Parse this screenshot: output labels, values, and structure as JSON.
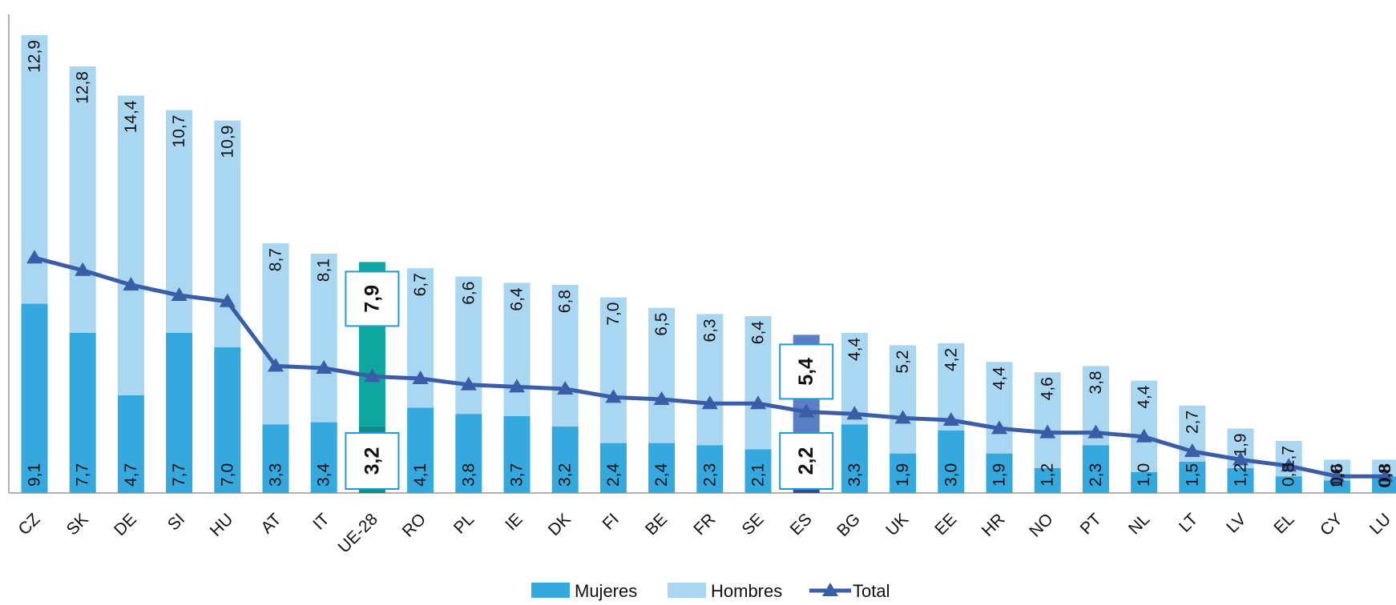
{
  "chart_data": {
    "type": "bar",
    "stacked": true,
    "categories": [
      "CZ",
      "SK",
      "DE",
      "SI",
      "HU",
      "AT",
      "IT",
      "UE-28",
      "RO",
      "PL",
      "IE",
      "DK",
      "FI",
      "BE",
      "FR",
      "SE",
      "ES",
      "BG",
      "UK",
      "EE",
      "HR",
      "NO",
      "PT",
      "NL",
      "LT",
      "LV",
      "EL",
      "CY",
      "LU"
    ],
    "series": [
      {
        "name": "Mujeres",
        "color": "#35A8DE",
        "values": [
          9.1,
          7.7,
          4.7,
          7.7,
          7.0,
          3.3,
          3.4,
          3.2,
          4.1,
          3.8,
          3.7,
          3.2,
          2.4,
          2.4,
          2.3,
          2.1,
          2.2,
          3.3,
          1.9,
          3.0,
          1.9,
          1.2,
          2.3,
          1.0,
          1.5,
          1.2,
          0.8,
          0.6,
          0.8
        ],
        "labels": [
          "9,1",
          "7,7",
          "4,7",
          "7,7",
          "7,0",
          "3,3",
          "3,4",
          "3,2",
          "4,1",
          "3,8",
          "3,7",
          "3,2",
          "2,4",
          "2,4",
          "2,3",
          "2,1",
          "2,2",
          "3,3",
          "1,9",
          "3,0",
          "1,9",
          "1,2",
          "2,3",
          "1,0",
          "1,5",
          "1,2",
          "0,8",
          "0,6",
          "0,8"
        ]
      },
      {
        "name": "Hombres",
        "color": "#A9D6F1",
        "values": [
          12.9,
          12.8,
          14.4,
          10.7,
          10.9,
          8.7,
          8.1,
          7.9,
          6.7,
          6.6,
          6.4,
          6.8,
          7.0,
          6.5,
          6.3,
          6.4,
          5.4,
          4.4,
          5.2,
          4.2,
          4.4,
          4.6,
          3.8,
          4.4,
          2.7,
          1.9,
          1.7,
          1.0,
          0.8
        ],
        "labels": [
          "12,9",
          "12,8",
          "14,4",
          "10,7",
          "10,9",
          "8,7",
          "8,1",
          "7,9",
          "6,7",
          "6,6",
          "6,4",
          "6,8",
          "7,0",
          "6,5",
          "6,3",
          "6,4",
          "5,4",
          "4,4",
          "5,2",
          "4,2",
          "4,4",
          "4,6",
          "3,8",
          "4,4",
          "2,7",
          "1,9",
          "1,7",
          "1,0",
          "0,8"
        ]
      },
      {
        "name": "Total",
        "type": "line",
        "color": "#3A5DA8",
        "values": [
          11.3,
          10.7,
          10.0,
          9.5,
          9.2,
          6.1,
          6.0,
          5.6,
          5.5,
          5.2,
          5.1,
          5.0,
          4.6,
          4.5,
          4.3,
          4.3,
          3.9,
          3.8,
          3.6,
          3.5,
          3.1,
          2.9,
          2.9,
          2.7,
          2.0,
          1.6,
          1.3,
          0.8,
          0.8
        ]
      }
    ],
    "highlight": {
      "UE-28": {
        "mujeres_color": "#0E8C86",
        "hombres_color": "#0FA6A0"
      },
      "ES": {
        "mujeres_color": "#2E4E9C",
        "hombres_color": "#5B7FC4"
      }
    },
    "ylim": [
      0,
      22.5
    ],
    "legend_position": "bottom",
    "grid": false
  }
}
